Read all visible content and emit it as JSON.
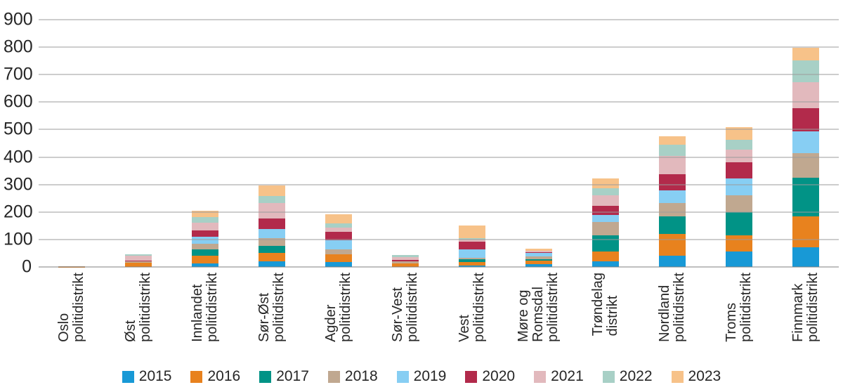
{
  "chart_data": {
    "type": "bar",
    "stacked": true,
    "title": "",
    "xlabel": "",
    "ylabel": "",
    "ylim": [
      0,
      900
    ],
    "yticks": [
      0,
      100,
      200,
      300,
      400,
      500,
      600,
      700,
      800,
      900
    ],
    "grid": true,
    "legend_position": "bottom",
    "categories": [
      {
        "label": "Oslo politidistrikt",
        "lines": [
          "Oslo",
          "politidistrikt"
        ]
      },
      {
        "label": "Øst politidistrikt",
        "lines": [
          "Øst",
          "politidistrikt"
        ]
      },
      {
        "label": "Innlandet politidistrikt",
        "lines": [
          "Innlandet",
          "politidistrikt"
        ]
      },
      {
        "label": "Sør-Øst politidistrikt",
        "lines": [
          "Sør-Øst",
          "politidistrikt"
        ]
      },
      {
        "label": "Agder politidistrikt",
        "lines": [
          "Agder",
          "politidistrikt"
        ]
      },
      {
        "label": "Sør-Vest politidistrikt",
        "lines": [
          "Sør-Vest",
          "politidistrikt"
        ]
      },
      {
        "label": "Vest politidistrikt",
        "lines": [
          "Vest",
          "politidistrikt"
        ]
      },
      {
        "label": "Møre og Romsdal politidistrikt",
        "lines": [
          "Møre og",
          "Romsdal",
          "politidistrikt"
        ]
      },
      {
        "label": "Trøndelag distrikt",
        "lines": [
          "Trøndelag",
          "distrikt"
        ]
      },
      {
        "label": "Nordland politidistrikt",
        "lines": [
          "Nordland",
          "politidistrikt"
        ]
      },
      {
        "label": "Troms politidistrikt",
        "lines": [
          "Troms",
          "politidistrikt"
        ]
      },
      {
        "label": "Finnmark politidistrikt",
        "lines": [
          "Finnmark",
          "politidistrikt"
        ]
      }
    ],
    "series": [
      {
        "name": "2015",
        "color": "#1899D6",
        "values": [
          0,
          0,
          12,
          21,
          17,
          0,
          6,
          10,
          20,
          42,
          57,
          72
        ]
      },
      {
        "name": "2016",
        "color": "#E8821E",
        "values": [
          1,
          15,
          28,
          31,
          29,
          14,
          12,
          13,
          37,
          77,
          57,
          113
        ]
      },
      {
        "name": "2017",
        "color": "#019386",
        "values": [
          0,
          0,
          24,
          26,
          0,
          0,
          9,
          6,
          59,
          66,
          85,
          140
        ]
      },
      {
        "name": "2018",
        "color": "#C0A890",
        "values": [
          1,
          5,
          21,
          28,
          19,
          7,
          7,
          9,
          47,
          47,
          63,
          90
        ]
      },
      {
        "name": "2019",
        "color": "#87CEF3",
        "values": [
          0,
          0,
          25,
          32,
          32,
          0,
          31,
          13,
          26,
          47,
          60,
          78
        ]
      },
      {
        "name": "2020",
        "color": "#B22A4B",
        "values": [
          0,
          4,
          24,
          38,
          32,
          5,
          28,
          4,
          34,
          58,
          58,
          85
        ]
      },
      {
        "name": "2021",
        "color": "#E2B9BD",
        "values": [
          1,
          16,
          28,
          56,
          15,
          9,
          6,
          3,
          39,
          66,
          46,
          94
        ]
      },
      {
        "name": "2022",
        "color": "#A8D0C6",
        "values": [
          0,
          6,
          21,
          26,
          15,
          9,
          7,
          1,
          25,
          43,
          37,
          81
        ]
      },
      {
        "name": "2023",
        "color": "#F7C289",
        "values": [
          0,
          0,
          23,
          38,
          32,
          0,
          45,
          7,
          36,
          31,
          45,
          45
        ]
      }
    ],
    "colors": {
      "gridline": "#9b9b9b",
      "baseline": "#7f7f7f",
      "text": "#262626"
    }
  }
}
